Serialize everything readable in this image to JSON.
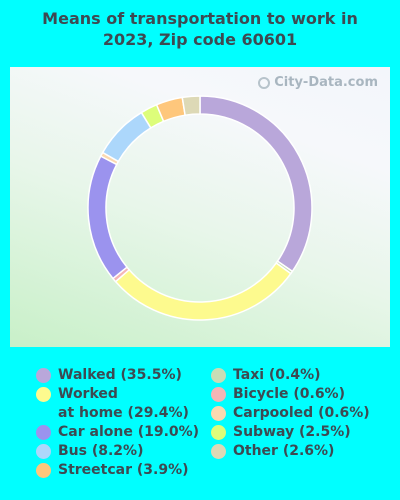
{
  "title_lines": [
    "Means of transportation to work in",
    "2023, Zip code 60601"
  ],
  "watermark": "City-Data.com",
  "chart_data": {
    "type": "pie",
    "title": "Means of transportation to work in 2023, Zip code 60601",
    "series": [
      {
        "name": "Walked",
        "value": 35.5,
        "label": "Walked (35.5%)",
        "color": "#b9a7da"
      },
      {
        "name": "Taxi",
        "value": 0.4,
        "label": "Taxi (0.4%)",
        "color": "#c9ddb6"
      },
      {
        "name": "Worked at home",
        "value": 29.4,
        "label_lines": [
          "Worked",
          "at home (29.4%)"
        ],
        "color": "#fdfa8e"
      },
      {
        "name": "Bicycle",
        "value": 0.6,
        "label": "Bicycle (0.6%)",
        "color": "#f4b6b6"
      },
      {
        "name": "Car alone",
        "value": 19.0,
        "label": "Car alone (19.0%)",
        "color": "#9b93ee"
      },
      {
        "name": "Carpooled",
        "value": 0.6,
        "label": "Carpooled (0.6%)",
        "color": "#fbd9b0"
      },
      {
        "name": "Bus",
        "value": 8.2,
        "label": "Bus (8.2%)",
        "color": "#acd7fb"
      },
      {
        "name": "Subway",
        "value": 2.5,
        "label": "Subway (2.5%)",
        "color": "#ddfd7a"
      },
      {
        "name": "Streetcar",
        "value": 3.9,
        "label": "Streetcar (3.9%)",
        "color": "#fec77c"
      },
      {
        "name": "Other",
        "value": 2.6,
        "label": "Other (2.6%)",
        "color": "#ddd9b6"
      }
    ],
    "slice_order": [
      "Walked",
      "Taxi",
      "Worked at home",
      "Bicycle",
      "Car alone",
      "Carpooled",
      "Bus",
      "Subway",
      "Streetcar",
      "Other"
    ],
    "style": "donut",
    "start_angle_deg": 0,
    "legend_position": "bottom"
  },
  "legend_left": [
    0,
    2,
    4,
    6,
    8
  ],
  "legend_right": [
    1,
    3,
    5,
    7,
    9
  ]
}
